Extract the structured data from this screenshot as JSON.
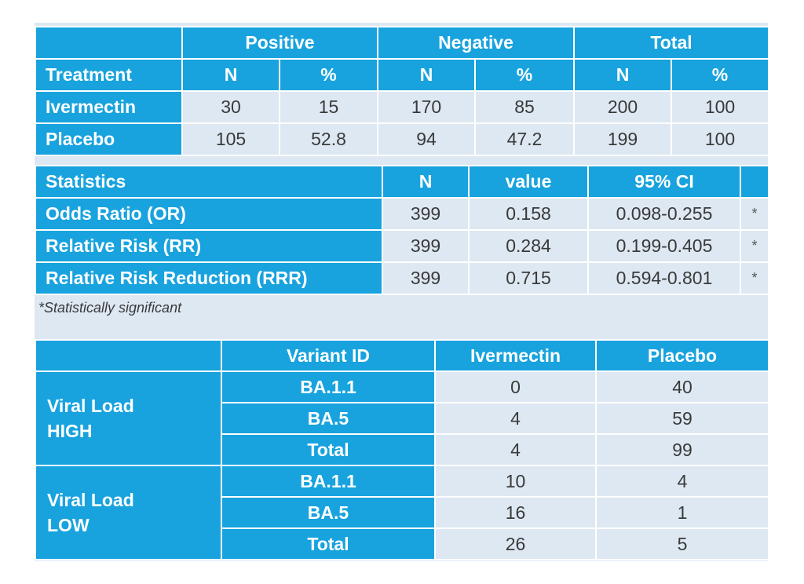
{
  "outcome_table": {
    "group_headers": [
      "Positive",
      "Negative",
      "Total"
    ],
    "col_headers": [
      "Treatment",
      "N",
      "%",
      "N",
      "%",
      "N",
      "%"
    ],
    "rows": [
      [
        "Ivermectin",
        "30",
        "15",
        "170",
        "85",
        "200",
        "100"
      ],
      [
        "Placebo",
        "105",
        "52.8",
        "94",
        "47.2",
        "199",
        "100"
      ]
    ]
  },
  "stats_table": {
    "headers": [
      "Statistics",
      "N",
      "value",
      "95% CI",
      ""
    ],
    "rows": [
      [
        "Odds Ratio (OR)",
        "399",
        "0.158",
        "0.098-0.255",
        "*"
      ],
      [
        "Relative Risk (RR)",
        "399",
        "0.284",
        "0.199-0.405",
        "*"
      ],
      [
        "Relative Risk Reduction (RRR)",
        "399",
        "0.715",
        "0.594-0.801",
        "*"
      ]
    ],
    "footnote": "*Statistically significant"
  },
  "viral_table": {
    "headers": [
      "Variant ID",
      "Ivermectin",
      "Placebo"
    ],
    "groups": [
      {
        "label_line1": "Viral Load",
        "label_line2": "HIGH",
        "rows": [
          [
            "BA.1.1",
            "0",
            "40"
          ],
          [
            "BA.5",
            "4",
            "59"
          ],
          [
            "Total",
            "4",
            "99"
          ]
        ]
      },
      {
        "label_line1": "Viral Load",
        "label_line2": "LOW",
        "rows": [
          [
            "BA.1.1",
            "10",
            "4"
          ],
          [
            "BA.5",
            "16",
            "1"
          ],
          [
            "Total",
            "26",
            "5"
          ]
        ]
      }
    ]
  },
  "colors": {
    "header_blue": "#18a3de",
    "cell_bg": "#dde8f2"
  }
}
